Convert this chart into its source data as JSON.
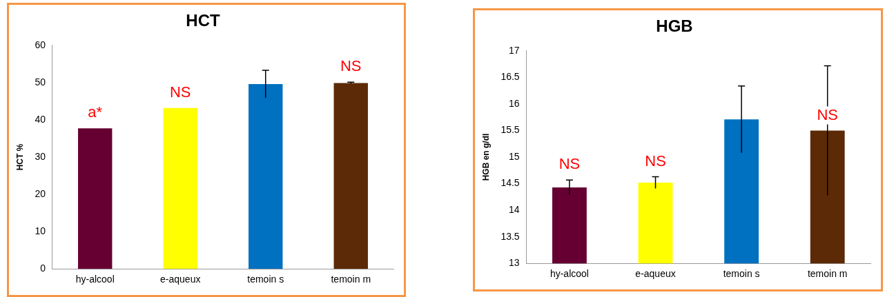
{
  "chart_data": [
    {
      "type": "bar",
      "title": "HCT",
      "ylabel": "HCT %",
      "categories": [
        "hy-alcool",
        "e-aqueux",
        "temoin s",
        "temoin m"
      ],
      "values": [
        37.7,
        43.2,
        49.6,
        49.9
      ],
      "colors": [
        "#660033",
        "#ffff00",
        "#0070c0",
        "#5c2a06"
      ],
      "errors": [
        null,
        null,
        3.7,
        0.2
      ],
      "ylim": [
        0,
        60
      ],
      "yticks": [
        0,
        10,
        20,
        30,
        40,
        50,
        60
      ],
      "grid": false,
      "annotations": [
        {
          "text": "a*",
          "x": "hy-alcool",
          "y": 37.7
        },
        {
          "text": "NS",
          "x": "e-aqueux",
          "y": 43.2
        },
        {
          "text": "NS",
          "x": "temoin m",
          "y": 49.9
        }
      ]
    },
    {
      "type": "bar",
      "title": "HGB",
      "ylabel": "HGB en g/dl",
      "categories": [
        "hy-alcool",
        "e-aqueux",
        "temoin s",
        "temoin m"
      ],
      "values": [
        14.43,
        14.52,
        15.71,
        15.5
      ],
      "colors": [
        "#660033",
        "#ffff00",
        "#0070c0",
        "#5c2a06"
      ],
      "errors": [
        0.14,
        0.11,
        0.63,
        1.22
      ],
      "ylim": [
        13,
        17
      ],
      "yticks": [
        13,
        13.5,
        14,
        14.5,
        15,
        15.5,
        16,
        16.5,
        17
      ],
      "grid": false,
      "annotations": [
        {
          "text": "NS",
          "x": "hy-alcool",
          "y": 14.43
        },
        {
          "text": "NS",
          "x": "e-aqueux",
          "y": 14.52
        },
        {
          "text": "NS",
          "x": "temoin m",
          "y": 15.5
        }
      ]
    }
  ]
}
